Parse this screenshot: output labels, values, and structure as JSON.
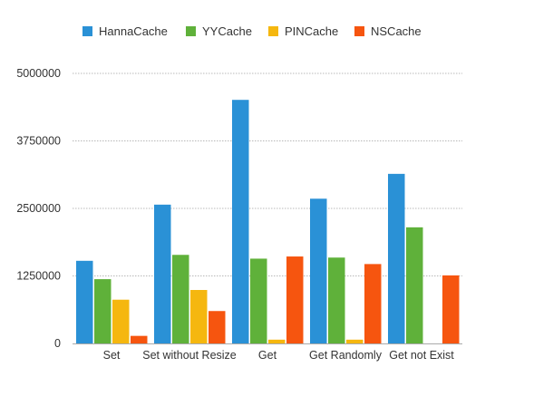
{
  "chart_data": {
    "type": "bar",
    "title": "",
    "xlabel": "",
    "ylabel": "",
    "categories": [
      "Set",
      "Set without Resize",
      "Get",
      "Get Randomly",
      "Get not Exist"
    ],
    "series": [
      {
        "name": "HannaCache",
        "color": "#2a91d6",
        "values": [
          1530000,
          2570000,
          4510000,
          2680000,
          3140000
        ]
      },
      {
        "name": "YYCache",
        "color": "#5fb13a",
        "values": [
          1190000,
          1640000,
          1570000,
          1590000,
          2150000
        ]
      },
      {
        "name": "PINCache",
        "color": "#f5b70f",
        "values": [
          810000,
          990000,
          70000,
          70000,
          0
        ]
      },
      {
        "name": "NSCache",
        "color": "#f6550f",
        "values": [
          140000,
          600000,
          1610000,
          1470000,
          1260000
        ]
      }
    ],
    "ylim": [
      0,
      5000000
    ],
    "yticks": [
      0,
      1250000,
      2500000,
      3750000,
      5000000
    ],
    "ytick_labels": [
      "0",
      "1250000",
      "2500000",
      "3750000",
      "5000000"
    ],
    "grid": true,
    "legend_position": "top-left"
  }
}
